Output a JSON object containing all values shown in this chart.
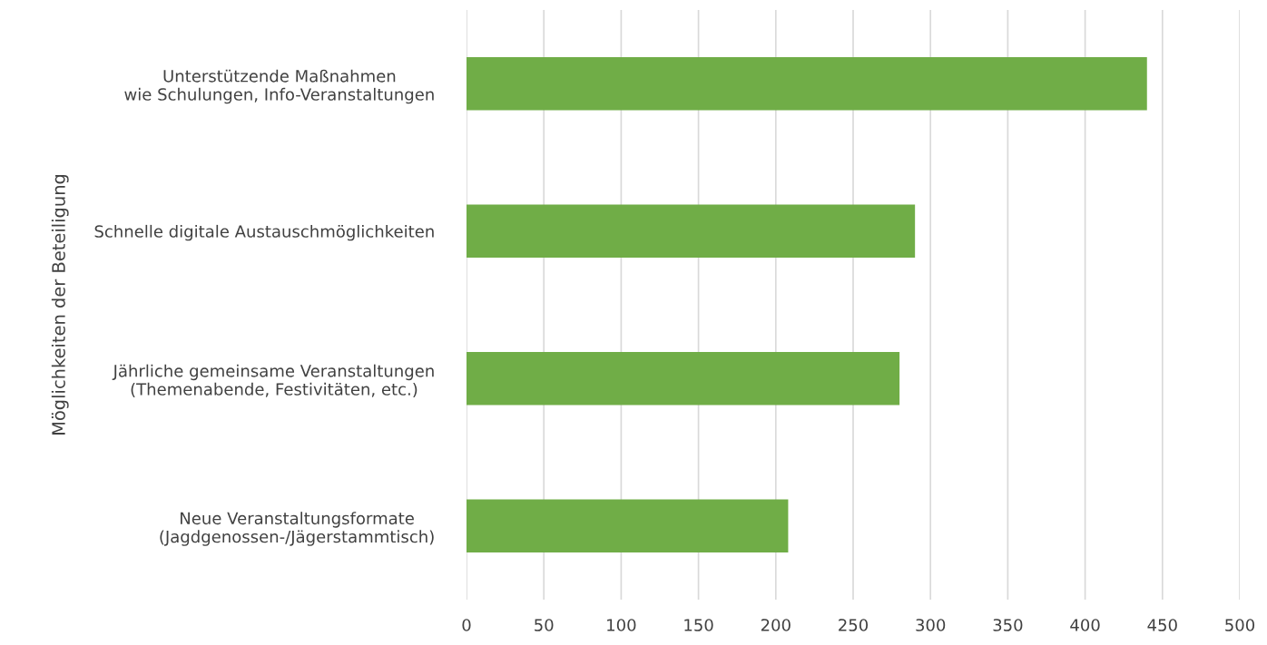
{
  "chart_data": {
    "type": "bar",
    "orientation": "horizontal",
    "ylabel": "Möglichkeiten der Beteiligung",
    "categories": [
      "Unterstützende Maßnahmen\nwie Schulungen, Info-Veranstaltungen",
      "Schnelle digitale Austauschmöglichkeiten",
      "Jährliche gemeinsame Veranstaltungen\n(Themenabende, Festivitäten, etc.)",
      "Neue Veranstaltungsformate\n(Jagdgenossen-/Jägerstammtisch)"
    ],
    "values": [
      440,
      290,
      280,
      208
    ],
    "color": "#70ad47",
    "xlim": [
      0,
      500
    ],
    "xticks": [
      0,
      50,
      100,
      150,
      200,
      250,
      300,
      350,
      400,
      450,
      500
    ],
    "grid": "x",
    "legend": false
  }
}
